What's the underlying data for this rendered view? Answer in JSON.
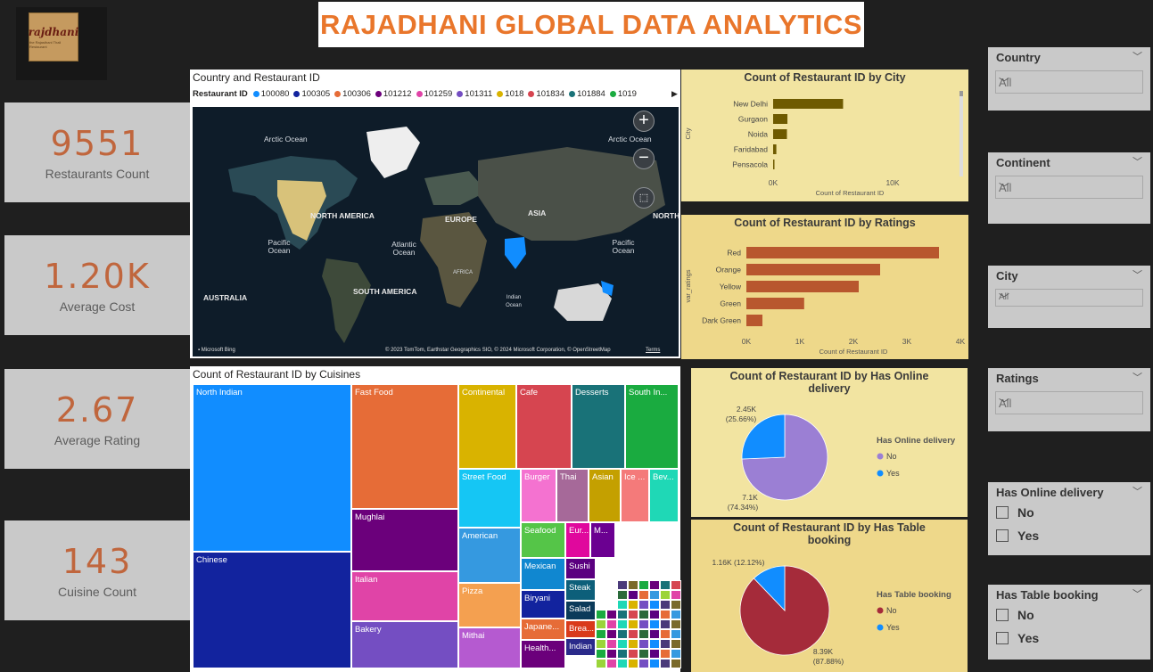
{
  "header": {
    "title": "RAJADHANI GLOBAL DATA ANALYTICS",
    "logo_text": "rajdhani",
    "logo_sub": "the Rajasthani Thali Restaurant"
  },
  "kpis": [
    {
      "value": "9551",
      "label": "Restaurants Count"
    },
    {
      "value": "1.20K",
      "label": "Average Cost"
    },
    {
      "value": "2.67",
      "label": "Average Rating"
    },
    {
      "value": "143",
      "label": "Cuisine Count"
    }
  ],
  "map": {
    "title": "Country and Restaurant ID",
    "legend_title": "Restaurant ID",
    "legend": [
      {
        "id": "100080",
        "color": "#118dff"
      },
      {
        "id": "100305",
        "color": "#12239e"
      },
      {
        "id": "100306",
        "color": "#e66c37"
      },
      {
        "id": "101212",
        "color": "#6b007b"
      },
      {
        "id": "101259",
        "color": "#e044a7"
      },
      {
        "id": "101311",
        "color": "#744ec2"
      },
      {
        "id": "1018",
        "color": "#d9b300"
      },
      {
        "id": "101834",
        "color": "#d64550"
      },
      {
        "id": "101884",
        "color": "#197278"
      },
      {
        "id": "1019",
        "color": "#1aab40"
      }
    ],
    "labels": {
      "arctic1": "Arctic Ocean",
      "arctic2": "Arctic Ocean",
      "north_america": "NORTH AMERICA",
      "europe": "EUROPE",
      "asia": "ASIA",
      "north_cut": "NORTH",
      "pacific1": "Pacific Ocean",
      "pacific2": "Pacific Ocean",
      "atlantic": "Atlantic Ocean",
      "africa": "AFRICA",
      "south_america": "SOUTH AMERICA",
      "indian": "Indian Ocean",
      "australia": "AUSTRALIA"
    },
    "zoom_in": "+",
    "zoom_out": "−",
    "bing": "Microsoft Bing",
    "copyright": "© 2023 TomTom, Earthstar Geographics SIO, © 2024 Microsoft Corporation, © OpenStreetMap",
    "terms": "Terms"
  },
  "city_chart": {
    "title": "Count of Restaurant ID by City",
    "ylabel": "City",
    "xlabel": "Count of Restaurant ID",
    "ticks": [
      "0K",
      "10K"
    ]
  },
  "ratings_chart": {
    "title": "Count of Restaurant ID by Ratings",
    "ylabel": "var_ratings",
    "xlabel": "Count of Restaurant ID",
    "ticks": [
      "0K",
      "1K",
      "2K",
      "3K",
      "4K"
    ]
  },
  "online_chart": {
    "title_line1": "Count of Restaurant ID by Has Online",
    "title_line2": "delivery",
    "legend_title": "Has Online delivery",
    "legend": [
      "No",
      "Yes"
    ],
    "label_yes_1": "2.45K",
    "label_yes_2": "(25.66%)",
    "label_no_1": "7.1K",
    "label_no_2": "(74.34%)"
  },
  "table_chart": {
    "title_line1": "Count of Restaurant ID by Has Table",
    "title_line2": "booking",
    "legend_title": "Has Table booking",
    "legend": [
      "No",
      "Yes"
    ],
    "label_yes": "1.16K (12.12%)",
    "label_no_1": "8.39K",
    "label_no_2": "(87.88%)"
  },
  "treemap": {
    "title": "Count of Restaurant ID by Cuisines",
    "cells": [
      {
        "label": "North Indian",
        "color": "#118dff"
      },
      {
        "label": "Chinese",
        "color": "#12239e"
      },
      {
        "label": "Fast Food",
        "color": "#e66c37"
      },
      {
        "label": "Mughlai",
        "color": "#6b007b"
      },
      {
        "label": "Italian",
        "color": "#e044a7"
      },
      {
        "label": "Bakery",
        "color": "#744ec2"
      },
      {
        "label": "Continental",
        "color": "#d9b300"
      },
      {
        "label": "Cafe",
        "color": "#d64550"
      },
      {
        "label": "Desserts",
        "color": "#197278"
      },
      {
        "label": "South In...",
        "color": "#1aab40"
      },
      {
        "label": "Street Food",
        "color": "#15c6f4"
      },
      {
        "label": "Burger",
        "color": "#f472d0"
      },
      {
        "label": "Thai",
        "color": "#a66999"
      },
      {
        "label": "Asian",
        "color": "#c4a000"
      },
      {
        "label": "Ice ...",
        "color": "#f47a7a"
      },
      {
        "label": "Bev...",
        "color": "#1fd8b6"
      },
      {
        "label": "American",
        "color": "#3599e0"
      },
      {
        "label": "Seafood",
        "color": "#55c548"
      },
      {
        "label": "Eur...",
        "color": "#e0089d"
      },
      {
        "label": "M...",
        "color": "#6b0091"
      },
      {
        "label": "Pizza",
        "color": "#f4a050"
      },
      {
        "label": "Mexican",
        "color": "#1087d0"
      },
      {
        "label": "Sushi",
        "color": "#5b0080"
      },
      {
        "label": "Biryani",
        "color": "#12239e"
      },
      {
        "label": "Steak",
        "color": "#0d5f7a"
      },
      {
        "label": "Salad",
        "color": "#0b3a5a"
      },
      {
        "label": "Mithai",
        "color": "#b55ad0"
      },
      {
        "label": "Japane...",
        "color": "#e66c37"
      },
      {
        "label": "Brea...",
        "color": "#d93a1b"
      },
      {
        "label": "Health...",
        "color": "#6b007b"
      },
      {
        "label": "Indian",
        "color": "#2a2a8a"
      }
    ]
  },
  "slicers": {
    "country": {
      "title": "Country",
      "value": "All"
    },
    "continent": {
      "title": "Continent",
      "value": "All"
    },
    "city": {
      "title": "City",
      "value": "All"
    },
    "ratings": {
      "title": "Ratings",
      "value": "All"
    },
    "online": {
      "title": "Has Online delivery",
      "options": [
        "No",
        "Yes"
      ]
    },
    "table": {
      "title": "Has Table booking",
      "options": [
        "No",
        "Yes"
      ]
    }
  },
  "chart_data": [
    {
      "type": "bar",
      "title": "Count of Restaurant ID by City",
      "orientation": "horizontal",
      "categories": [
        "New Delhi",
        "Gurgaon",
        "Noida",
        "Faridabad",
        "Pensacola"
      ],
      "values": [
        5473,
        1118,
        1080,
        251,
        20
      ],
      "xlabel": "Count of Restaurant ID",
      "ylabel": "City",
      "xlim": [
        0,
        12000
      ],
      "color": "#6e5a00"
    },
    {
      "type": "bar",
      "title": "Count of Restaurant ID by Ratings",
      "orientation": "horizontal",
      "categories": [
        "Red",
        "Orange",
        "Yellow",
        "Green",
        "Dark Green"
      ],
      "values": [
        3600,
        2500,
        2100,
        1080,
        300
      ],
      "xlabel": "Count of Restaurant ID",
      "ylabel": "var_ratings",
      "xlim": [
        0,
        4000
      ],
      "color": "#b8572e"
    },
    {
      "type": "pie",
      "title": "Count of Restaurant ID by Has Online delivery",
      "categories": [
        "No",
        "Yes"
      ],
      "values": [
        7100,
        2450
      ],
      "colors": [
        "#9b7fd4",
        "#118dff"
      ]
    },
    {
      "type": "pie",
      "title": "Count of Restaurant ID by Has Table booking",
      "categories": [
        "No",
        "Yes"
      ],
      "values": [
        8390,
        1160
      ],
      "colors": [
        "#a52b3a",
        "#118dff"
      ]
    }
  ]
}
